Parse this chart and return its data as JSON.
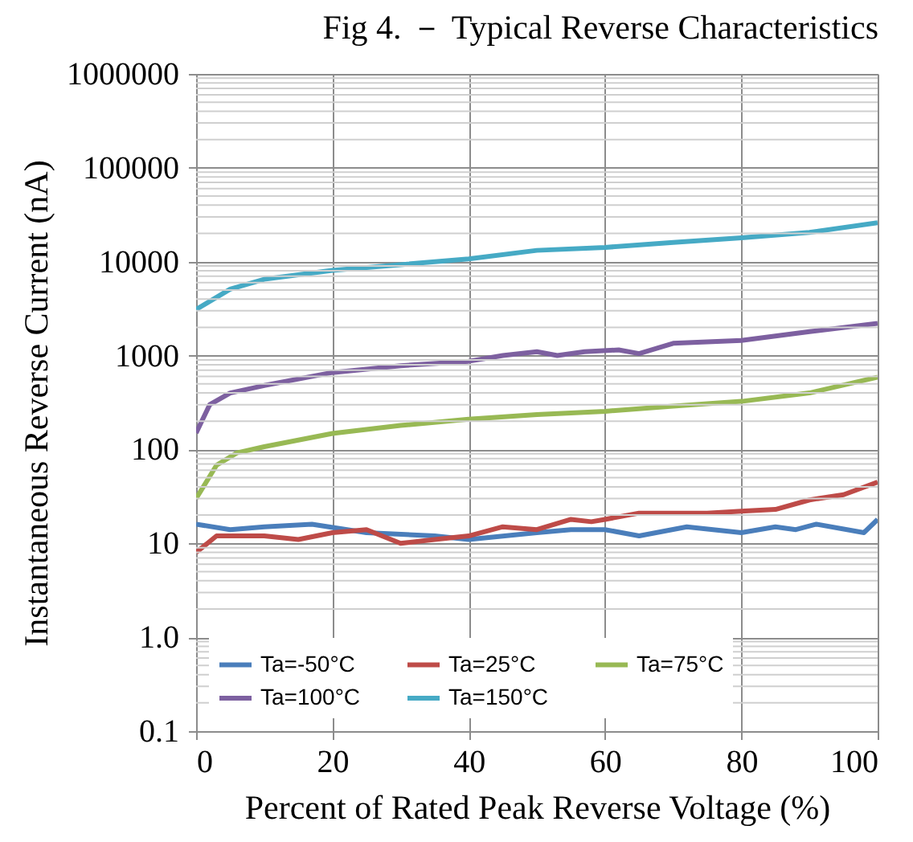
{
  "chart_data": {
    "type": "line",
    "title": "Fig 4.  －  Typical Reverse Characteristics",
    "xlabel": "Percent of Rated Peak Reverse Voltage (%)",
    "ylabel": "Instantaneous Reverse Current (nA)",
    "series": [
      {
        "name": "Ta=-50°C",
        "color": "#4a7ebb",
        "x": [
          0,
          5,
          10,
          17,
          25,
          35,
          40,
          50,
          55,
          60,
          65,
          72,
          80,
          85,
          88,
          91,
          98,
          100
        ],
        "values": [
          16,
          14,
          15,
          16,
          13,
          12,
          11,
          13,
          14,
          14,
          12,
          15,
          13,
          15,
          14,
          16,
          13,
          18
        ]
      },
      {
        "name": "Ta=25°C",
        "color": "#be4b48",
        "x": [
          0,
          3,
          10,
          15,
          20,
          25,
          30,
          35,
          40,
          45,
          50,
          55,
          58,
          60,
          65,
          75,
          80,
          85,
          90,
          95,
          100
        ],
        "values": [
          8,
          12,
          12,
          11,
          13,
          14,
          10,
          11,
          12,
          15,
          14,
          18,
          17,
          18,
          21,
          21,
          22,
          23,
          29,
          33,
          45
        ]
      },
      {
        "name": "Ta=75°C",
        "color": "#98b954",
        "x": [
          0,
          3,
          6,
          10,
          20,
          30,
          40,
          50,
          60,
          70,
          80,
          90,
          100
        ],
        "values": [
          30,
          68,
          92,
          107,
          148,
          180,
          210,
          235,
          255,
          290,
          325,
          400,
          590
        ]
      },
      {
        "name": "Ta=100°C",
        "color": "#7d60a0",
        "x": [
          0,
          2,
          5,
          10,
          20,
          30,
          40,
          45,
          50,
          53,
          57,
          62,
          65,
          70,
          80,
          90,
          100
        ],
        "values": [
          150,
          300,
          400,
          480,
          660,
          780,
          870,
          1000,
          1100,
          1000,
          1100,
          1150,
          1050,
          1350,
          1450,
          1800,
          2200
        ]
      },
      {
        "name": "Ta=150°C",
        "color": "#46aac5",
        "x": [
          0,
          5,
          10,
          20,
          30,
          40,
          50,
          60,
          70,
          80,
          90,
          100
        ],
        "values": [
          3100,
          5100,
          6500,
          8100,
          9300,
          10700,
          13200,
          14200,
          16000,
          18000,
          20500,
          26000
        ]
      }
    ],
    "xlim": [
      0,
      100
    ],
    "xticks": [
      0,
      20,
      40,
      60,
      80,
      100
    ],
    "ylim": [
      0.1,
      1000000
    ],
    "yticks": [
      0.1,
      {
        "value": 1,
        "label": "1.0"
      },
      10,
      100,
      1000,
      10000,
      100000,
      1000000
    ],
    "log": "y",
    "grid": true,
    "legend": "bottom",
    "line_style": "solid",
    "marker": "none"
  }
}
